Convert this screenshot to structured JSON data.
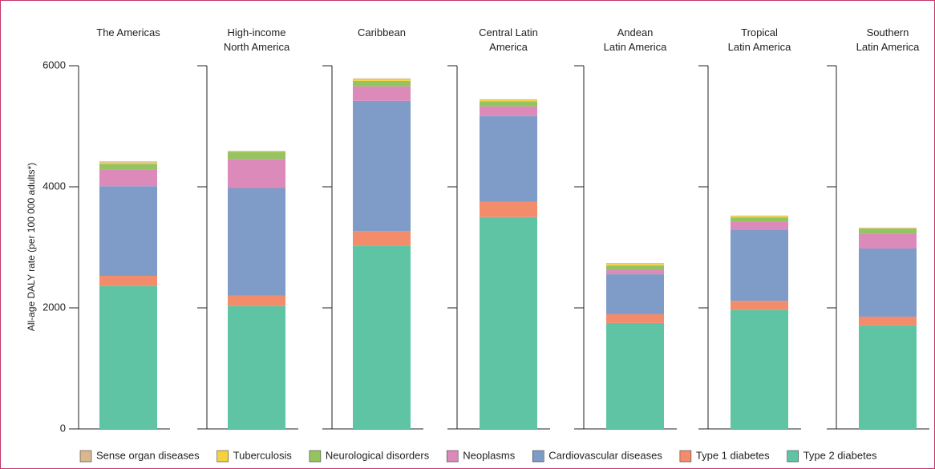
{
  "chart_data": {
    "type": "stacked-bar",
    "y_label": "All-age DALY rate (per 100 000 adults*)",
    "categories": [
      "The Americas",
      "High-income\nNorth America",
      "Caribbean",
      "Central Latin\nAmerica",
      "Andean\nLatin America",
      "Tropical\nLatin America",
      "Southern\nLatin America"
    ],
    "ylim": [
      0,
      6000
    ],
    "yticks": [
      0,
      2000,
      4000,
      6000
    ],
    "series": [
      {
        "name": "Type 2 diabetes",
        "color": "#5fc4a4",
        "values": [
          2360,
          2030,
          3030,
          3500,
          1750,
          1970,
          1710
        ]
      },
      {
        "name": "Type 1 diabetes",
        "color": "#f38c6b",
        "values": [
          170,
          170,
          240,
          250,
          145,
          145,
          145
        ]
      },
      {
        "name": "Cardiovascular diseases",
        "color": "#7f9bc8",
        "values": [
          1480,
          1780,
          2150,
          1420,
          660,
          1180,
          1125
        ]
      },
      {
        "name": "Neoplasms",
        "color": "#dc8ab9",
        "values": [
          280,
          480,
          240,
          160,
          80,
          130,
          250
        ]
      },
      {
        "name": "Neurological disorders",
        "color": "#94c45f",
        "values": [
          90,
          120,
          90,
          80,
          65,
          65,
          80
        ]
      },
      {
        "name": "Tuberculosis",
        "color": "#f5d23c",
        "values": [
          20,
          5,
          25,
          20,
          25,
          25,
          5
        ]
      },
      {
        "name": "Sense organ diseases",
        "color": "#d9b88f",
        "values": [
          20,
          10,
          15,
          15,
          15,
          10,
          10
        ]
      }
    ]
  }
}
